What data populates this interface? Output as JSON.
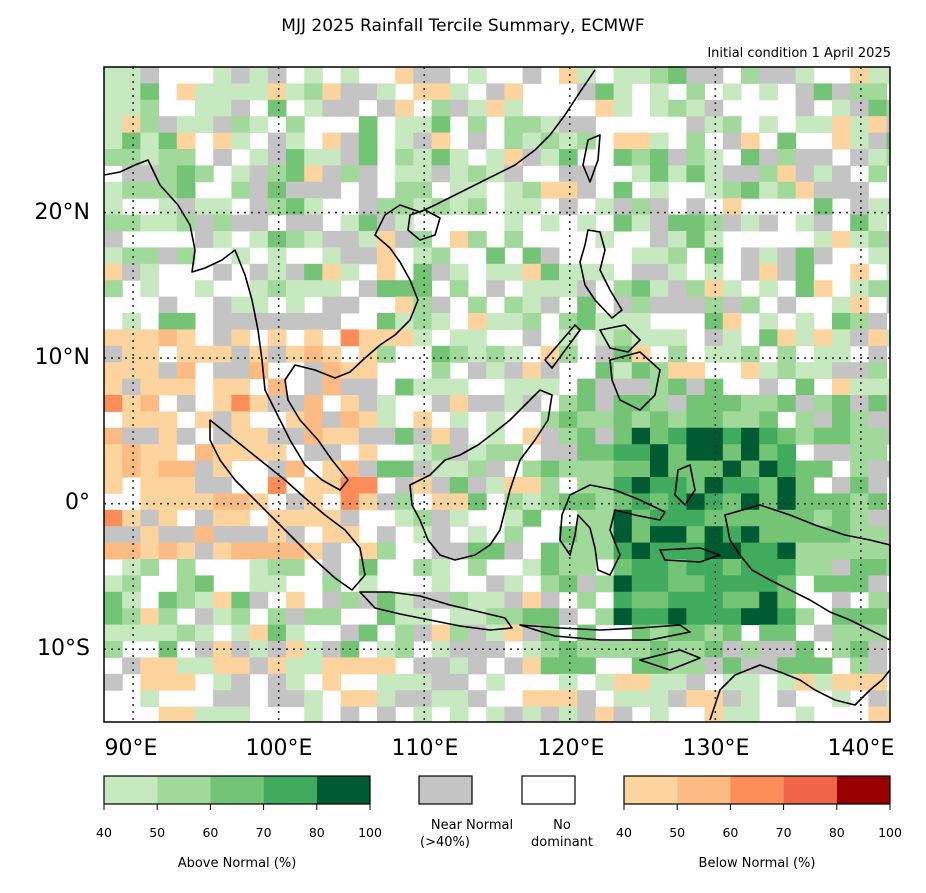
{
  "title": "MJJ 2025 Rainfall Tercile Summary, ECMWF",
  "subtitle": "Initial condition 1 April 2025",
  "map": {
    "lon_range": [
      88,
      142
    ],
    "lat_range": [
      -15,
      30
    ],
    "lat_labels": [
      "20°N",
      "10°N",
      "0°",
      "10°S"
    ],
    "lat_values": [
      20,
      10,
      0,
      -10
    ],
    "lon_labels": [
      "90°E",
      "100°E",
      "110°E",
      "120°E",
      "130°E",
      "140°E"
    ],
    "lon_values": [
      90,
      100,
      110,
      120,
      130,
      140
    ],
    "gridlines": "dotted"
  },
  "legend": {
    "above_normal": {
      "caption": "Above Normal (%)",
      "ticks": [
        "40",
        "50",
        "60",
        "70",
        "80",
        "100"
      ],
      "colors": [
        "#c7e9c0",
        "#a1d99b",
        "#74c476",
        "#41ab5d",
        "#005a32"
      ]
    },
    "near_normal": {
      "line1": "Near Normal",
      "line2": "(>40%)",
      "color": "#c4c4c4"
    },
    "no_dominant": {
      "line1": "No",
      "line2": "dominant",
      "color": "#ffffff"
    },
    "below_normal": {
      "caption": "Below Normal (%)",
      "ticks": [
        "40",
        "50",
        "60",
        "70",
        "80",
        "100"
      ],
      "colors": [
        "#fdd49e",
        "#fdbb84",
        "#fc8d59",
        "#ef6548",
        "#990000"
      ]
    }
  },
  "colors": {
    "land_outline": "#000000",
    "grid": "#333333"
  }
}
